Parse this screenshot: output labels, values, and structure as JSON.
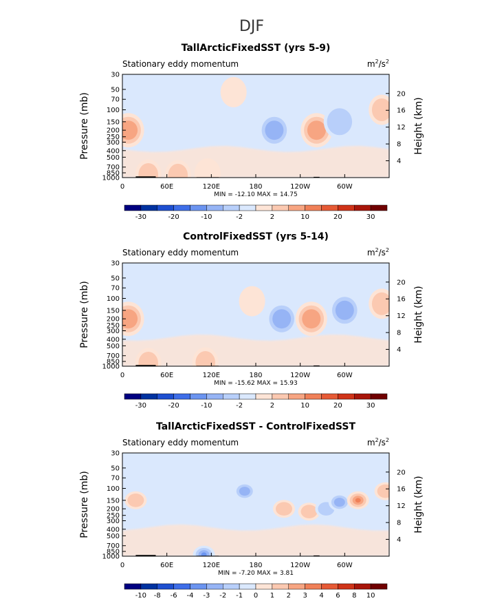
{
  "figure": {
    "season_title": "DJF"
  },
  "chart_data": [
    {
      "type": "heatmap",
      "title": "TallArcticFixedSST (yrs 5-9)",
      "subtitle_left": "Stationary eddy momentum",
      "units_base": "m",
      "units_sup1": "2",
      "units_mid": "/s",
      "units_sup2": "2",
      "ylabel": "Pressure (mb)",
      "ylabel_right": "Height (km)",
      "y_ticks": [
        "30",
        "50",
        "70",
        "100",
        "150",
        "200",
        "250",
        "300",
        "400",
        "500",
        "700",
        "850",
        "1000"
      ],
      "y_ticks_right": [
        "20",
        "16",
        "12",
        "8",
        "4"
      ],
      "x_ticks": [
        "0",
        "60E",
        "120E",
        "180",
        "120W",
        "60W"
      ],
      "stats": {
        "min_label": "MIN =",
        "min": "-12.10",
        "max_label": "MAX =",
        "max": "14.75"
      },
      "colorbar": {
        "labels": [
          "-30",
          "-20",
          "-10",
          "-2",
          "2",
          "10",
          "20",
          "30"
        ],
        "colors": [
          "#000080",
          "#0032a0",
          "#1e4fd0",
          "#3e6ee8",
          "#6b94f0",
          "#96b4f5",
          "#b8cffa",
          "#dae8fd",
          "#fde4d6",
          "#fbc9b1",
          "#f7a582",
          "#f08058",
          "#e65a35",
          "#cf3318",
          "#a8150a",
          "#700000"
        ]
      },
      "features": [
        {
          "lon": 8,
          "p": 200,
          "v": 14
        },
        {
          "lon": 35,
          "p": 900,
          "v": 6
        },
        {
          "lon": 75,
          "p": 920,
          "v": 5
        },
        {
          "lon": 115,
          "p": 870,
          "v": 4
        },
        {
          "lon": 150,
          "p": 55,
          "v": 2
        },
        {
          "lon": 205,
          "p": 200,
          "v": -12
        },
        {
          "lon": 262,
          "p": 200,
          "v": 12
        },
        {
          "lon": 293,
          "p": 150,
          "v": -11
        },
        {
          "lon": 350,
          "p": 100,
          "v": 8
        }
      ]
    },
    {
      "type": "heatmap",
      "title": "ControlFixedSST (yrs 5-14)",
      "subtitle_left": "Stationary eddy momentum",
      "units_base": "m",
      "units_sup1": "2",
      "units_mid": "/s",
      "units_sup2": "2",
      "ylabel": "Pressure (mb)",
      "ylabel_right": "Height (km)",
      "y_ticks": [
        "30",
        "50",
        "70",
        "100",
        "150",
        "200",
        "250",
        "300",
        "400",
        "500",
        "700",
        "850",
        "1000"
      ],
      "y_ticks_right": [
        "20",
        "16",
        "12",
        "8",
        "4"
      ],
      "x_ticks": [
        "0",
        "60E",
        "120E",
        "180",
        "120W",
        "60W"
      ],
      "stats": {
        "min_label": "MIN =",
        "min": "-15.62",
        "max_label": "MAX =",
        "max": "15.93"
      },
      "colorbar": {
        "labels": [
          "-30",
          "-20",
          "-10",
          "-2",
          "2",
          "10",
          "20",
          "30"
        ],
        "colors": [
          "#000080",
          "#0032a0",
          "#1e4fd0",
          "#3e6ee8",
          "#6b94f0",
          "#96b4f5",
          "#b8cffa",
          "#dae8fd",
          "#fde4d6",
          "#fbc9b1",
          "#f7a582",
          "#f08058",
          "#e65a35",
          "#cf3318",
          "#a8150a",
          "#700000"
        ]
      },
      "features": [
        {
          "lon": 8,
          "p": 200,
          "v": 15
        },
        {
          "lon": 35,
          "p": 900,
          "v": 5
        },
        {
          "lon": 112,
          "p": 880,
          "v": 5
        },
        {
          "lon": 175,
          "p": 110,
          "v": 4
        },
        {
          "lon": 215,
          "p": 200,
          "v": -13
        },
        {
          "lon": 255,
          "p": 200,
          "v": 13
        },
        {
          "lon": 300,
          "p": 150,
          "v": -15
        },
        {
          "lon": 350,
          "p": 120,
          "v": 6
        }
      ]
    },
    {
      "type": "heatmap",
      "title": "TallArcticFixedSST - ControlFixedSST",
      "subtitle_left": "Stationary eddy momentum",
      "units_base": "m",
      "units_sup1": "2",
      "units_mid": "/s",
      "units_sup2": "2",
      "ylabel": "Pressure (mb)",
      "ylabel_right": "Height (km)",
      "y_ticks": [
        "30",
        "50",
        "70",
        "100",
        "150",
        "200",
        "250",
        "300",
        "400",
        "500",
        "700",
        "850",
        "1000"
      ],
      "y_ticks_right": [
        "20",
        "16",
        "12",
        "8",
        "4"
      ],
      "x_ticks": [
        "0",
        "60E",
        "120E",
        "180",
        "120W",
        "60W"
      ],
      "stats": {
        "min_label": "MIN =",
        "min": "-7.20",
        "max_label": "MAX =",
        "max": "3.81"
      },
      "colorbar": {
        "labels": [
          "-10",
          "-8",
          "-6",
          "-4",
          "-3",
          "-2",
          "-1",
          "0",
          "1",
          "2",
          "3",
          "4",
          "6",
          "8",
          "10"
        ],
        "colors": [
          "#000080",
          "#0032a0",
          "#1e4fd0",
          "#3e6ee8",
          "#6b94f0",
          "#96b4f5",
          "#b8cffa",
          "#dae8fd",
          "#fde4d6",
          "#fbc9b1",
          "#f7a582",
          "#f08058",
          "#e65a35",
          "#cf3318",
          "#a8150a",
          "#700000"
        ]
      },
      "features": [
        {
          "lon": 18,
          "p": 150,
          "v": 2
        },
        {
          "lon": 110,
          "p": 950,
          "v": -4
        },
        {
          "lon": 165,
          "p": 110,
          "v": -3
        },
        {
          "lon": 218,
          "p": 200,
          "v": 2
        },
        {
          "lon": 252,
          "p": 220,
          "v": 2
        },
        {
          "lon": 275,
          "p": 200,
          "v": -2
        },
        {
          "lon": 293,
          "p": 160,
          "v": -3
        },
        {
          "lon": 318,
          "p": 150,
          "v": 4
        },
        {
          "lon": 355,
          "p": 110,
          "v": 2
        }
      ]
    }
  ]
}
